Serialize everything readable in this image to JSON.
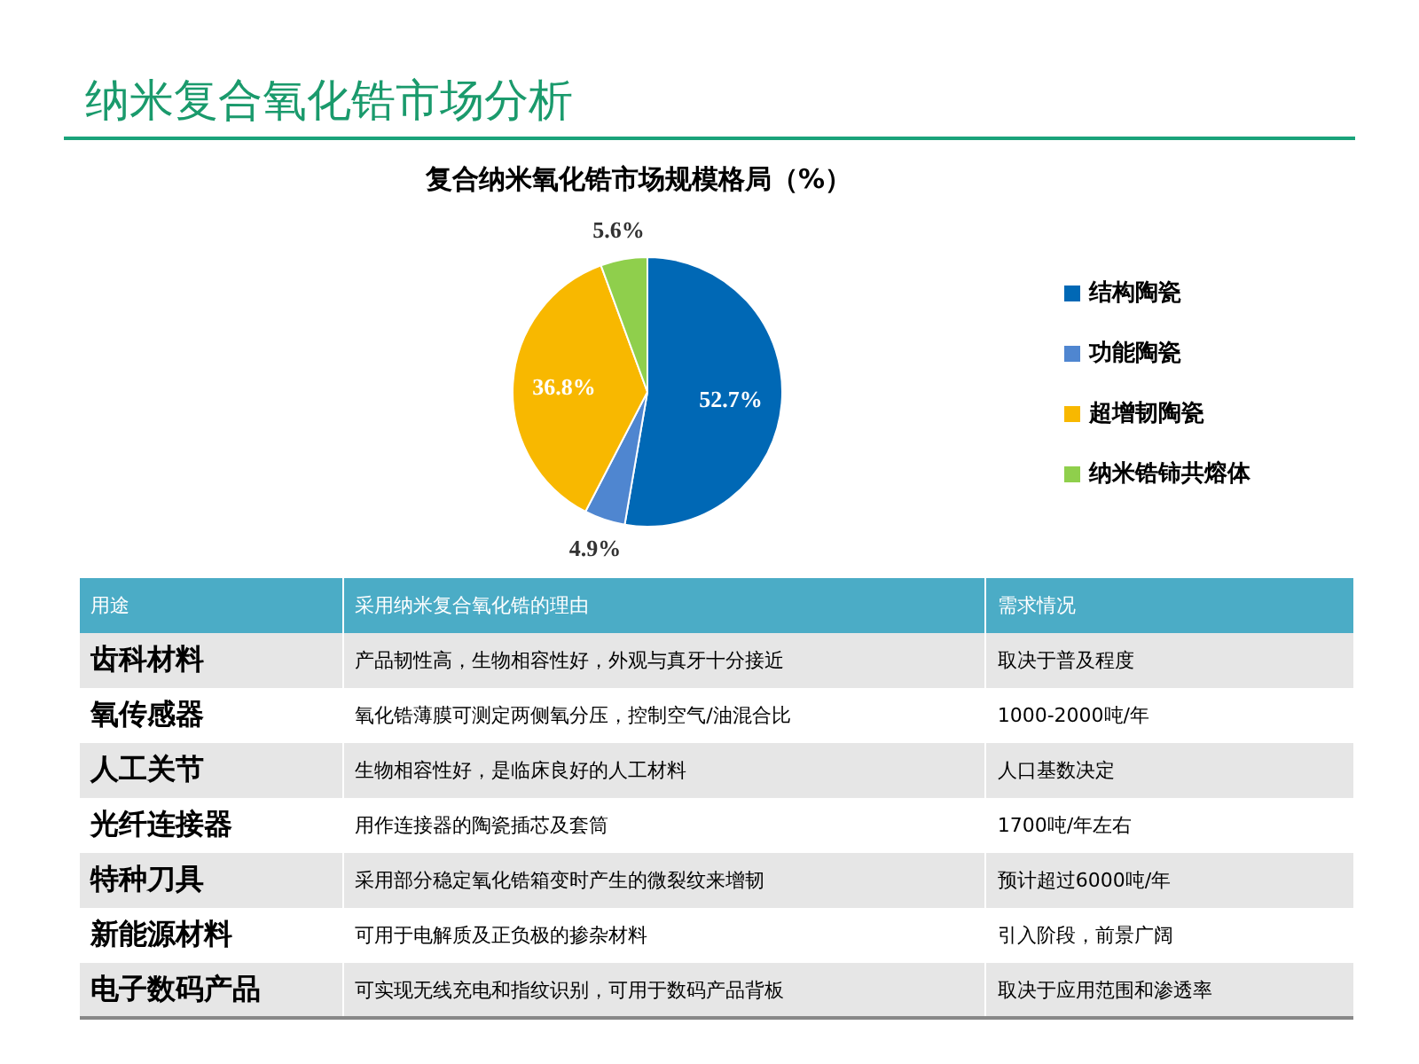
{
  "chart_data": {
    "type": "pie",
    "title": "纳米复合氧化锆市场分析",
    "subtitle": "复合纳米氧化锆市场规模格局（%）",
    "categories": [
      "结构陶瓷",
      "功能陶瓷",
      "超增韧陶瓷",
      "纳米锆铈共熔体"
    ],
    "values": [
      52.7,
      4.9,
      36.8,
      5.6
    ],
    "value_labels": [
      "52.7%",
      "4.9%",
      "36.8%",
      "5.6%"
    ],
    "colors": [
      "#0068b5",
      "#4f86d0",
      "#f8b800",
      "#8fcf4c"
    ],
    "legend": "right",
    "annotations": [
      "用途",
      "采用纳米复合氧化锆的理由",
      "需求情况",
      "齿科材料",
      "产品韧性高，生物相容性好，外观与真牙十分接近",
      "取决于普及程度",
      "氧传感器",
      "氧化锆薄膜可测定两侧氧分压，控制空气/油混合比",
      "1000-2000吨/年",
      "人工关节",
      "生物相容性好，是临床良好的人工材料",
      "人口基数决定",
      "光纤连接器",
      "用作连接器的陶瓷插芯及套筒",
      "1700吨/年左右",
      "特种刀具",
      "采用部分稳定氧化锆箱变时产生的微裂纹来增韧",
      "预计超过6000吨/年",
      "新能源材料",
      "可用于电解质及正负极的掺杂材料",
      "引入阶段，前景广阔",
      "电子数码产品",
      "可实现无线充电和指纹识别，可用于数码产品背板",
      "取决于应用范围和渗透率"
    ]
  }
}
